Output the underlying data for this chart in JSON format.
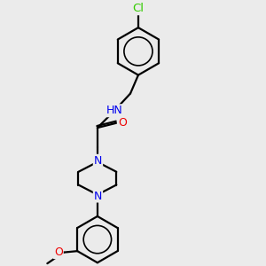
{
  "background_color": "#ebebeb",
  "bond_color": "#000000",
  "bond_width": 1.6,
  "atom_colors": {
    "C": "#000000",
    "H": "#5aacac",
    "N": "#0000ee",
    "O": "#ee0000",
    "Cl": "#33cc00"
  },
  "font_size": 9,
  "figsize": [
    3.0,
    3.0
  ],
  "dpi": 100,
  "xlim": [
    0,
    10
  ],
  "ylim": [
    0,
    10
  ]
}
